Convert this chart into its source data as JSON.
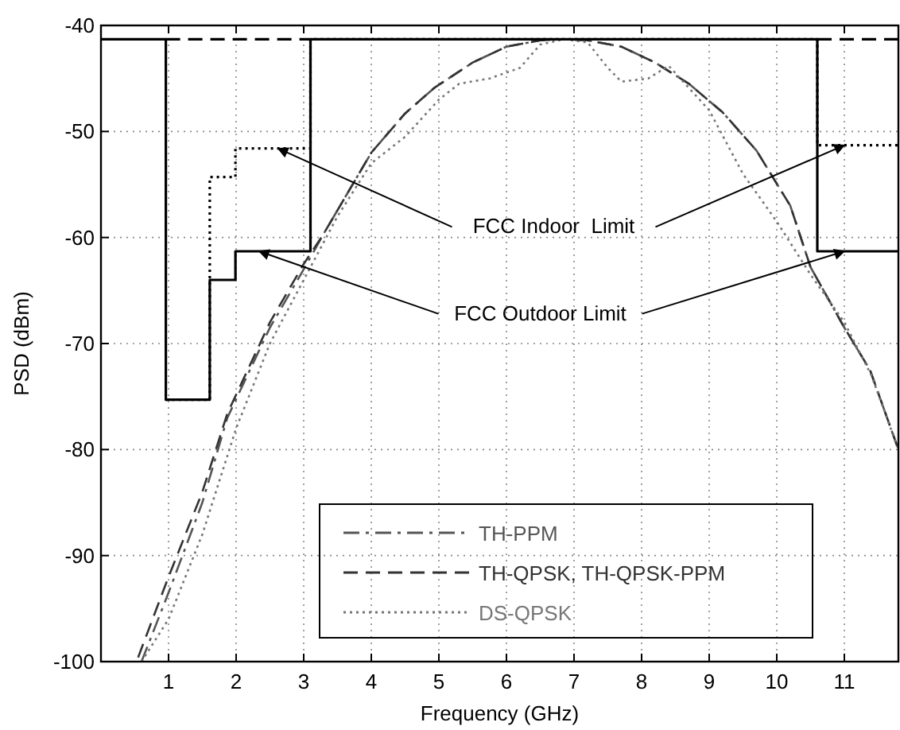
{
  "chart_data": {
    "type": "line",
    "xlabel": "Frequency (GHz)",
    "ylabel": "PSD (dBm)",
    "xlim": [
      0,
      11.8
    ],
    "xticks": [
      1,
      2,
      3,
      4,
      5,
      6,
      7,
      8,
      9,
      10,
      11
    ],
    "ylim": [
      -100,
      -40
    ],
    "yticks": [
      -100,
      -90,
      -80,
      -70,
      -60,
      -50,
      -40
    ],
    "grid": true,
    "legend": "bottom right",
    "marker": "none",
    "series": [
      {
        "name": "TH-PPM",
        "color": "#555555",
        "line_style": "dashdot",
        "x": [
          0.6,
          1,
          1.5,
          1.87,
          2.5,
          3,
          3.3,
          4,
          4.5,
          4.93,
          5.5,
          6,
          6.5,
          6.85,
          7.2,
          7.7,
          8.2,
          8.7,
          9.2,
          9.7,
          10.2,
          10.5,
          11,
          11.38,
          11.8
        ],
        "values": [
          -100,
          -93.5,
          -85,
          -77,
          -68.5,
          -63,
          -59.6,
          -52,
          -48.3,
          -45.9,
          -43.5,
          -42,
          -41.4,
          -41.3,
          -41.4,
          -42,
          -43.5,
          -45.5,
          -48.2,
          -51.8,
          -57,
          -62.8,
          -68.5,
          -72.5,
          -80
        ]
      },
      {
        "name": "TH-QPSK, TH-QPSK-PPM",
        "color": "#333333",
        "line_style": "dashed",
        "x": [
          0.55,
          1,
          1.5,
          1.87,
          2.5,
          3,
          3.3,
          4,
          4.5,
          4.93,
          5.5,
          6,
          6.5,
          6.85,
          7.2,
          7.7,
          8.2,
          8.7,
          9.2,
          9.7,
          10.2,
          10.5,
          11,
          11.38,
          11.8
        ],
        "values": [
          -99.6,
          -92,
          -84,
          -76.6,
          -68,
          -62.5,
          -59.6,
          -52,
          -48.3,
          -45.9,
          -43.5,
          -42,
          -41.4,
          -41.3,
          -41.4,
          -42,
          -43.5,
          -45.5,
          -48.2,
          -51.8,
          -57,
          -62.8,
          -68.5,
          -72.5,
          -80
        ]
      },
      {
        "name": "DS-QPSK",
        "color": "#777777",
        "line_style": "dotted",
        "x": [
          0.6,
          1,
          1.5,
          2,
          2.5,
          3,
          3.5,
          4,
          4.5,
          5,
          5.3,
          5.75,
          6.2,
          6.5,
          6.85,
          7.2,
          7.5,
          7.7,
          8.1,
          8.4,
          9,
          9.5,
          10,
          10.5,
          11,
          11.4,
          11.8
        ],
        "values": [
          -100,
          -96,
          -88,
          -78,
          -70,
          -64,
          -58,
          -53,
          -50.5,
          -47,
          -45.5,
          -45,
          -44,
          -41.8,
          -41.3,
          -41.6,
          -44,
          -45.3,
          -45,
          -43.8,
          -48,
          -54,
          -58.5,
          -63.5,
          -68,
          -73,
          -80
        ]
      },
      {
        "type": "step",
        "color": "#000000",
        "line_style": "solid",
        "x": [
          0,
          0.96,
          1.61,
          1.99,
          3.1,
          10.6,
          11.8
        ],
        "values": [
          -41.3,
          -75.3,
          -64,
          -61.3,
          -41.3,
          -61.3,
          -61.3
        ]
      },
      {
        "type": "step",
        "color": "#000000",
        "line_style": "dotted",
        "x": [
          0.96,
          1.61,
          1.99,
          3.1,
          10.6,
          11.8
        ],
        "values": [
          -75.3,
          -54.3,
          -51.6,
          -41.3,
          -51.3,
          -51.3
        ]
      },
      {
        "type": "step",
        "color": "#000000",
        "line_style": "dashed",
        "x": [
          0.96,
          3.1,
          5,
          10.6,
          11.8
        ],
        "values": [
          -41.3,
          -41.3,
          null,
          -41.3,
          -41.3
        ]
      }
    ],
    "annotations": [
      {
        "text": "FCC Indoor  Limit",
        "x": 2.62,
        "y": -51.6
      },
      {
        "text": "FCC Outdoor Limit",
        "x": 2.34,
        "y": -61.3
      }
    ]
  }
}
